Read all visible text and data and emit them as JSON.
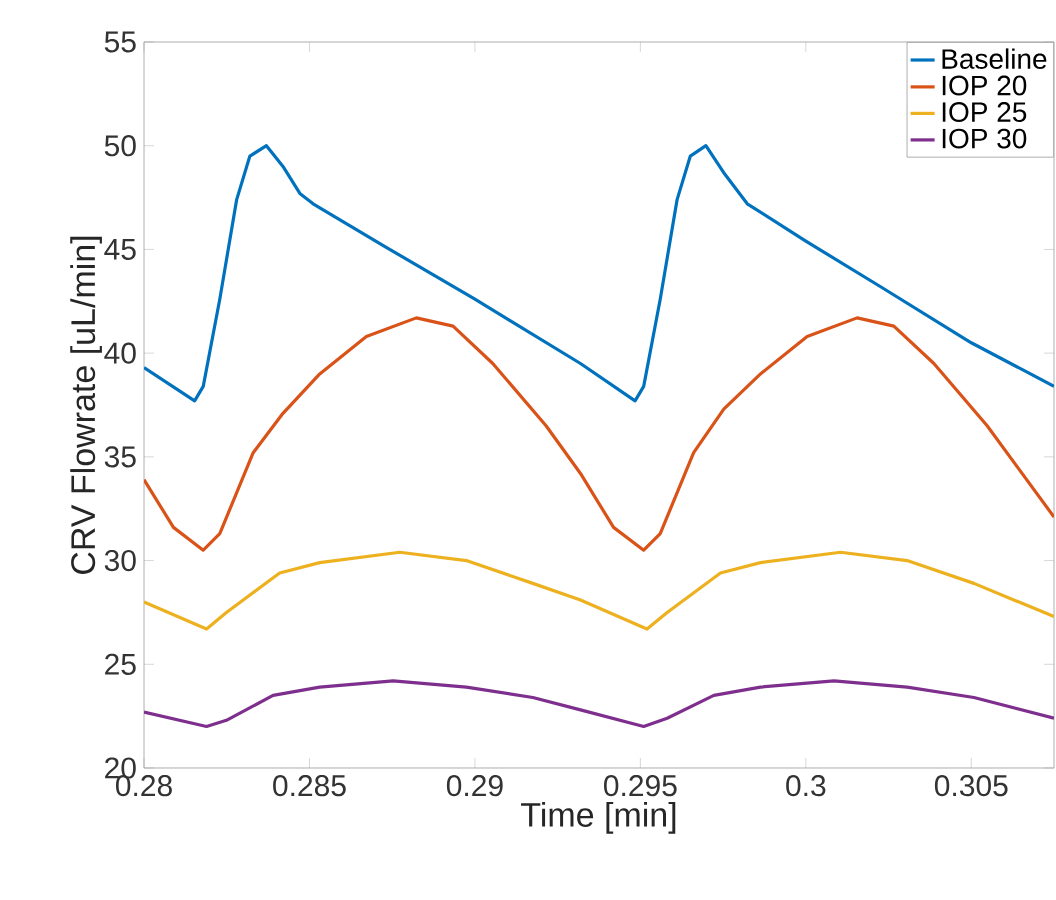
{
  "chart_data": {
    "type": "line",
    "xlabel": "Time [min]",
    "ylabel": "CRV Flowrate [uL/min]",
    "xlim": [
      0.28,
      0.3075
    ],
    "ylim": [
      20,
      55
    ],
    "xticks": [
      0.28,
      0.285,
      0.29,
      0.295,
      0.3,
      0.305
    ],
    "yticks": [
      20,
      25,
      30,
      35,
      40,
      45,
      50,
      55
    ],
    "grid": false,
    "legend": "top right",
    "marker": "none",
    "line_style": "solid",
    "series": [
      {
        "name": "Baseline",
        "color": "#0072bd",
        "x": [
          0.28,
          0.28153,
          0.28179,
          0.28229,
          0.2828,
          0.2832,
          0.2837,
          0.2842,
          0.28471,
          0.28511,
          0.28732,
          0.29,
          0.29319,
          0.29484,
          0.2951,
          0.2956,
          0.29611,
          0.29651,
          0.29698,
          0.29752,
          0.29823,
          0.3,
          0.30226,
          0.305,
          0.3075
        ],
        "values": [
          39.3,
          37.7,
          38.4,
          42.6,
          47.4,
          49.5,
          50.0,
          49.0,
          47.7,
          47.2,
          45.1,
          42.6,
          39.5,
          37.7,
          38.4,
          42.6,
          47.4,
          49.5,
          50.0,
          48.7,
          47.2,
          45.4,
          43.2,
          40.5,
          38.4
        ]
      },
      {
        "name": "IOP 20",
        "color": "#d95319",
        "x": [
          0.28,
          0.28089,
          0.28179,
          0.28229,
          0.2833,
          0.2842,
          0.28531,
          0.28672,
          0.28823,
          0.28934,
          0.29054,
          0.29215,
          0.29319,
          0.29419,
          0.2951,
          0.2956,
          0.29661,
          0.29752,
          0.29863,
          0.30004,
          0.30155,
          0.30266,
          0.30387,
          0.30548,
          0.3075
        ],
        "values": [
          33.9,
          31.6,
          30.5,
          31.3,
          35.2,
          37.1,
          39.0,
          40.8,
          41.7,
          41.3,
          39.5,
          36.5,
          34.2,
          31.6,
          30.5,
          31.3,
          35.2,
          37.3,
          39.0,
          40.8,
          41.7,
          41.3,
          39.5,
          36.5,
          32.1
        ]
      },
      {
        "name": "IOP 25",
        "color": "#edb120",
        "x": [
          0.28,
          0.28189,
          0.28249,
          0.2841,
          0.28531,
          0.28773,
          0.28974,
          0.29175,
          0.29319,
          0.2952,
          0.29581,
          0.29742,
          0.29863,
          0.30105,
          0.30306,
          0.30508,
          0.3075
        ],
        "values": [
          28.0,
          26.7,
          27.5,
          29.4,
          29.9,
          30.4,
          30.0,
          28.9,
          28.1,
          26.7,
          27.5,
          29.4,
          29.9,
          30.4,
          30.0,
          28.9,
          27.3
        ]
      },
      {
        "name": "IOP 30",
        "color": "#7e2f8e",
        "x": [
          0.28,
          0.28189,
          0.28249,
          0.2839,
          0.28531,
          0.28753,
          0.28974,
          0.29175,
          0.29319,
          0.2951,
          0.29581,
          0.29722,
          0.29863,
          0.30085,
          0.30306,
          0.30508,
          0.3075
        ],
        "values": [
          22.7,
          22.0,
          22.3,
          23.5,
          23.9,
          24.2,
          23.9,
          23.4,
          22.8,
          22.0,
          22.4,
          23.5,
          23.9,
          24.2,
          23.9,
          23.4,
          22.4
        ]
      }
    ]
  }
}
